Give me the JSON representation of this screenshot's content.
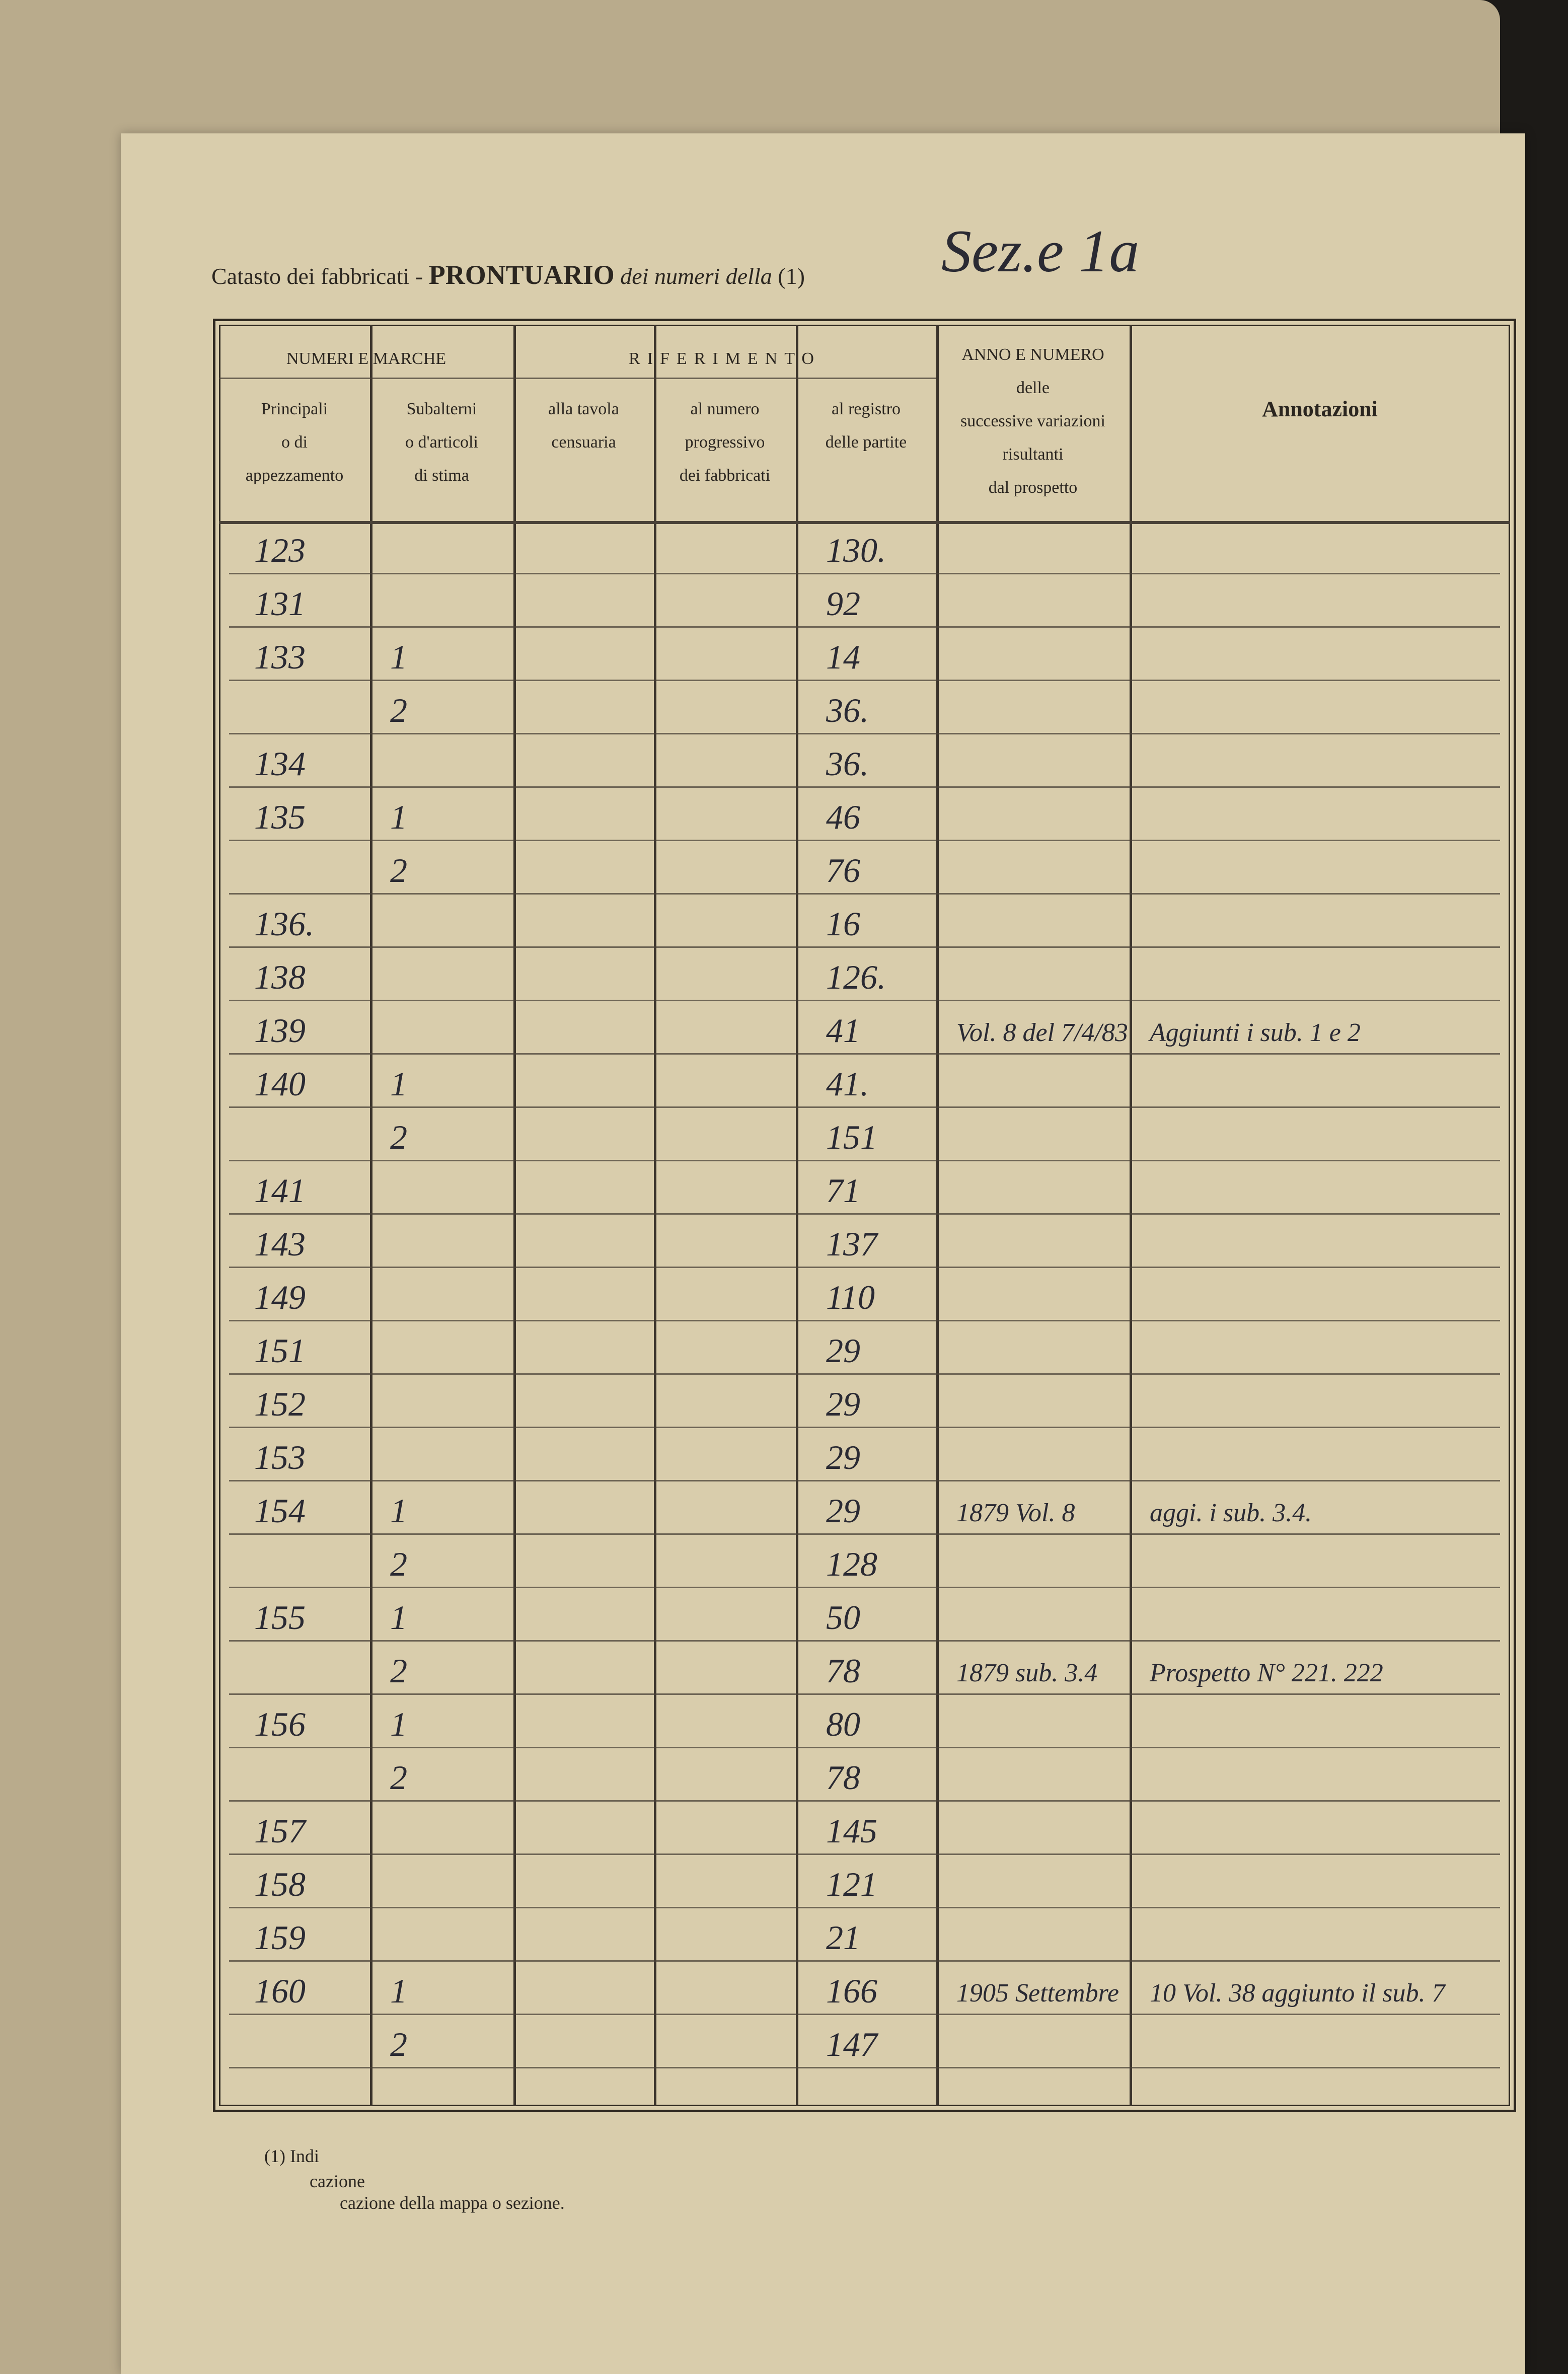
{
  "header": {
    "prefix": "Catasto dei fabbricati -",
    "title": "PRONTUARIO",
    "middle": "dei numeri della",
    "note_ref": "(1)",
    "handwritten": "Sez.e 1a"
  },
  "table": {
    "groups": [
      "NUMERI E MARCHE",
      "RIFERIMENTO"
    ],
    "columns": [
      {
        "lines": [
          "Principali",
          "o di",
          "appezzamento"
        ]
      },
      {
        "lines": [
          "Subalterni",
          "o d'articoli",
          "di stima"
        ]
      },
      {
        "lines": [
          "alla tavola",
          "censuaria"
        ]
      },
      {
        "lines": [
          "al numero",
          "progressivo",
          "dei fabbricati"
        ]
      },
      {
        "lines": [
          "al registro",
          "delle partite"
        ]
      },
      {
        "lines": [
          "ANNO E NUMERO",
          "delle",
          "successive variazioni",
          "risultanti",
          "dal prospetto"
        ]
      },
      {
        "lines": [
          "Annotazioni"
        ]
      }
    ],
    "rows": [
      {
        "principale": "123",
        "registro": "130."
      },
      {
        "principale": "131",
        "registro": "92"
      },
      {
        "principale": "133",
        "subalterno": "1",
        "registro": "14"
      },
      {
        "subalterno": "2",
        "registro": "36."
      },
      {
        "principale": "134",
        "registro": "36."
      },
      {
        "principale": "135",
        "subalterno": "1",
        "registro": "46"
      },
      {
        "subalterno": "2",
        "registro": "76"
      },
      {
        "principale": "136.",
        "registro": "16"
      },
      {
        "principale": "138",
        "registro": "126."
      },
      {
        "principale": "139",
        "registro": "41",
        "anno": "Vol. 8 del 7/4/83",
        "annotazioni": "Aggiunti i sub. 1 e 2"
      },
      {
        "principale": "140",
        "subalterno": "1",
        "registro": "41."
      },
      {
        "subalterno": "2",
        "registro": "151"
      },
      {
        "principale": "141",
        "registro": "71"
      },
      {
        "principale": "143",
        "registro": "137"
      },
      {
        "principale": "149",
        "registro": "110"
      },
      {
        "principale": "151",
        "registro": "29"
      },
      {
        "principale": "152",
        "registro": "29"
      },
      {
        "principale": "153",
        "registro": "29"
      },
      {
        "principale": "154",
        "subalterno": "1",
        "registro": "29",
        "anno": "1879 Vol. 8",
        "annotazioni": "aggi. i sub. 3.4."
      },
      {
        "subalterno": "2",
        "registro": "128"
      },
      {
        "principale": "155",
        "subalterno": "1",
        "registro": "50"
      },
      {
        "subalterno": "2",
        "registro": "78",
        "anno": "1879 sub. 3.4",
        "annotazioni": "Prospetto N° 221. 222"
      },
      {
        "principale": "156",
        "subalterno": "1",
        "registro": "80"
      },
      {
        "subalterno": "2",
        "registro": "78"
      },
      {
        "principale": "157",
        "registro": "145"
      },
      {
        "principale": "158",
        "registro": "121"
      },
      {
        "principale": "159",
        "registro": "21"
      },
      {
        "principale": "160",
        "subalterno": "1",
        "registro": "166",
        "anno": "1905 Settembre",
        "annotazioni": "10 Vol. 38 aggiunto il sub. 7"
      },
      {
        "subalterno": "2",
        "registro": "147"
      }
    ]
  },
  "footnote": [
    "(1) Indi",
    "cazione",
    "cazione della mappa o sezione."
  ]
}
